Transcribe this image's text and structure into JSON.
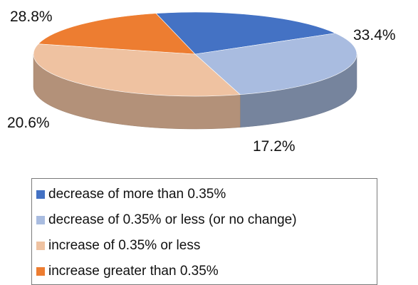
{
  "chart_data": {
    "type": "pie",
    "style": "3d",
    "title": "",
    "slices": [
      {
        "label": "decrease of more than 0.35%",
        "value": 20.6,
        "value_label": "20.6%",
        "color": "#4472c4"
      },
      {
        "label": "decrease of 0.35% or less (or no change)",
        "value": 28.8,
        "value_label": "28.8%",
        "color": "#a9bce0"
      },
      {
        "label": "increase of 0.35% or less",
        "value": 33.4,
        "value_label": "33.4%",
        "color": "#efc2a1"
      },
      {
        "label": "increase greater than 0.35%",
        "value": 17.2,
        "value_label": "17.2%",
        "color": "#ed7d31"
      }
    ],
    "legend_position": "bottom"
  }
}
